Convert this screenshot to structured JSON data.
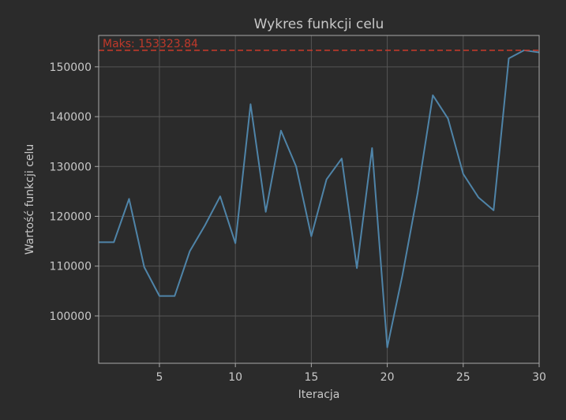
{
  "colors": {
    "background": "#2b2b2b",
    "axes_background": "#2b2b2b",
    "grid": "#555555",
    "spine": "#aaaaaa",
    "text": "#c8c8c8",
    "line": "#4f84a8",
    "max_line": "#c0392b"
  },
  "chart_data": {
    "type": "line",
    "title": "Wykres funkcji celu",
    "xlabel": "Iteracja",
    "ylabel": "Wartość funkcji celu",
    "xlim": [
      1,
      30
    ],
    "ylim": [
      90500,
      156300
    ],
    "xticks": [
      5,
      10,
      15,
      20,
      25,
      30
    ],
    "xtick_labels": [
      "5",
      "10",
      "15",
      "20",
      "25",
      "30"
    ],
    "yticks": [
      100000,
      110000,
      120000,
      130000,
      140000,
      150000
    ],
    "ytick_labels": [
      "100000",
      "110000",
      "120000",
      "130000",
      "140000",
      "150000"
    ],
    "grid": true,
    "series": [
      {
        "x": [
          1,
          2,
          3,
          4,
          5,
          6,
          7,
          8,
          9,
          10,
          11,
          12,
          13,
          14,
          15,
          16,
          17,
          18,
          19,
          20,
          21,
          22,
          23,
          24,
          25,
          26,
          27,
          28,
          29,
          30
        ],
        "values": [
          114800,
          114800,
          123500,
          109800,
          104000,
          104000,
          113000,
          118200,
          124000,
          114600,
          142500,
          120900,
          137200,
          130000,
          116000,
          127400,
          131600,
          109600,
          133700,
          93700,
          108200,
          124700,
          144300,
          139600,
          128500,
          123800,
          121200,
          151700,
          153323.84,
          152900
        ]
      }
    ],
    "annotations": [
      {
        "type": "hline",
        "y": 153323.84,
        "label": "Maks: 153323.84",
        "style": "dashed"
      }
    ]
  }
}
